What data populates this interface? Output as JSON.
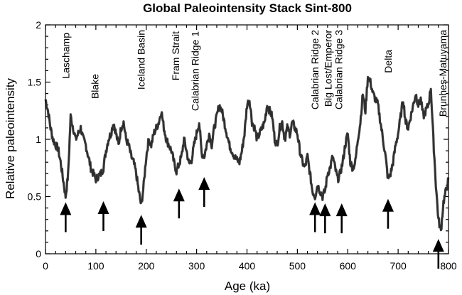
{
  "chart_data": {
    "type": "line",
    "title": "Global Paleointensity Stack Sint-800",
    "xlabel": "Age (ka)",
    "ylabel": "Relative paleointensity",
    "xlim": [
      0,
      800
    ],
    "ylim": [
      0,
      2
    ],
    "x_ticks": [
      0,
      100,
      200,
      300,
      400,
      500,
      600,
      700,
      800
    ],
    "y_ticks": [
      0,
      0.5,
      1,
      1.5,
      2
    ],
    "x_tick_labels": [
      "0",
      "100",
      "200",
      "300",
      "400",
      "500",
      "600",
      "700",
      "800"
    ],
    "y_tick_labels": [
      "0",
      "0.5",
      "1",
      "1.5",
      "2"
    ],
    "grid": false,
    "series": [
      {
        "color": "#3d3d3d",
        "x": [
          0,
          5,
          10,
          15,
          20,
          25,
          30,
          35,
          40,
          45,
          50,
          55,
          60,
          65,
          70,
          75,
          80,
          85,
          90,
          95,
          100,
          105,
          110,
          115,
          120,
          125,
          130,
          135,
          140,
          145,
          150,
          155,
          160,
          165,
          170,
          175,
          180,
          185,
          190,
          195,
          200,
          205,
          210,
          215,
          220,
          225,
          230,
          235,
          240,
          245,
          250,
          255,
          260,
          265,
          270,
          275,
          280,
          285,
          290,
          295,
          300,
          305,
          310,
          315,
          320,
          325,
          330,
          335,
          340,
          345,
          350,
          355,
          360,
          365,
          370,
          375,
          380,
          385,
          390,
          395,
          400,
          405,
          410,
          415,
          420,
          425,
          430,
          435,
          440,
          445,
          450,
          455,
          460,
          465,
          470,
          475,
          480,
          485,
          490,
          495,
          500,
          505,
          510,
          515,
          520,
          525,
          530,
          535,
          540,
          545,
          550,
          555,
          560,
          565,
          570,
          575,
          580,
          585,
          590,
          595,
          600,
          605,
          610,
          615,
          620,
          625,
          630,
          635,
          640,
          645,
          650,
          655,
          660,
          665,
          670,
          675,
          680,
          685,
          690,
          695,
          700,
          705,
          710,
          715,
          720,
          725,
          730,
          735,
          740,
          745,
          750,
          755,
          760,
          765,
          770,
          775,
          780,
          785,
          790,
          795,
          800
        ],
        "y": [
          1.35,
          1.25,
          1.1,
          1.0,
          0.95,
          0.92,
          0.8,
          0.65,
          0.5,
          0.7,
          1.2,
          1.1,
          1.0,
          1.05,
          1.1,
          1.0,
          0.95,
          0.85,
          0.75,
          0.7,
          0.65,
          0.68,
          0.7,
          0.75,
          0.9,
          1.0,
          1.05,
          1.15,
          1.05,
          0.95,
          1.1,
          1.15,
          1.0,
          0.95,
          0.85,
          0.8,
          0.7,
          0.55,
          0.42,
          0.6,
          0.85,
          1.0,
          0.95,
          1.05,
          1.1,
          1.15,
          1.25,
          1.1,
          1.0,
          0.95,
          0.9,
          0.8,
          0.72,
          0.78,
          0.85,
          1.0,
          0.9,
          0.78,
          0.82,
          0.95,
          1.05,
          1.15,
          0.88,
          0.85,
          0.95,
          1.05,
          0.95,
          1.1,
          1.2,
          1.3,
          1.25,
          1.15,
          1.05,
          0.95,
          0.9,
          0.85,
          0.82,
          0.8,
          0.9,
          1.05,
          1.3,
          1.35,
          1.15,
          1.1,
          1.0,
          1.05,
          1.1,
          1.15,
          1.3,
          1.25,
          1.2,
          1.0,
          0.95,
          1.1,
          1.15,
          1.0,
          1.1,
          1.05,
          1.15,
          1.1,
          1.05,
          0.9,
          0.8,
          0.75,
          0.85,
          0.7,
          0.55,
          0.5,
          0.6,
          0.55,
          0.5,
          0.55,
          0.7,
          0.75,
          0.85,
          0.75,
          0.65,
          0.7,
          0.8,
          0.95,
          1.05,
          0.8,
          0.75,
          0.8,
          1.0,
          1.15,
          1.4,
          1.25,
          1.55,
          1.5,
          1.4,
          1.35,
          1.3,
          1.15,
          1.0,
          0.85,
          0.65,
          0.7,
          0.8,
          0.95,
          1.05,
          1.2,
          1.35,
          1.15,
          1.1,
          1.2,
          1.3,
          1.4,
          1.3,
          1.35,
          1.2,
          1.25,
          1.3,
          1.45,
          1.0,
          0.6,
          0.3,
          0.2,
          0.45,
          0.55,
          0.65
        ]
      }
    ],
    "annotations": [
      {
        "label": "Laschamp",
        "x": 40
      },
      {
        "label": "Blake",
        "x": 115
      },
      {
        "label": "Iceland Basin",
        "x": 190
      },
      {
        "label": "Fram Strait",
        "x": 265
      },
      {
        "label": "Calabrian Ridge 1",
        "x": 315
      },
      {
        "label": "Calabrian Ridge 2",
        "x": 535
      },
      {
        "label": "Big Lost/Emperor",
        "x": 555
      },
      {
        "label": "Calabrian Ridge 3",
        "x": 588
      },
      {
        "label": "Delta",
        "x": 680
      },
      {
        "label": "Brunhes-Matuyama",
        "x": 780
      }
    ]
  }
}
